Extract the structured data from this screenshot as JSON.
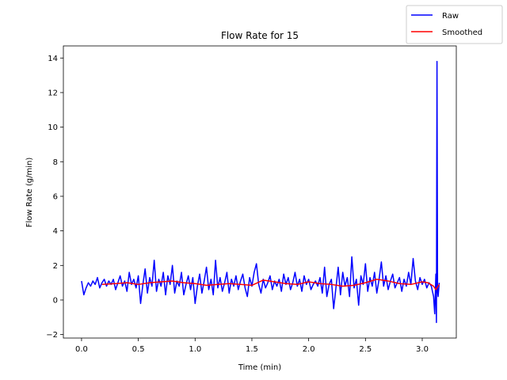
{
  "chart_data": {
    "type": "line",
    "title": "Flow Rate for 15",
    "xlabel": "Time (min)",
    "ylabel": "Flow Rate (g/min)",
    "xlim": [
      -0.16,
      3.3
    ],
    "ylim": [
      -2.2,
      14.7
    ],
    "xticks": [
      0.0,
      0.5,
      1.0,
      1.5,
      2.0,
      2.5,
      3.0
    ],
    "xtick_labels": [
      "0.0",
      "0.5",
      "1.0",
      "1.5",
      "2.0",
      "2.5",
      "3.0"
    ],
    "yticks": [
      -2,
      0,
      2,
      4,
      6,
      8,
      10,
      12,
      14
    ],
    "ytick_labels": [
      "−2",
      "0",
      "2",
      "4",
      "6",
      "8",
      "10",
      "12",
      "14"
    ],
    "legend_position": "top-right",
    "series": [
      {
        "name": "Raw",
        "color": "#0000ff",
        "x": [
          0.0,
          0.02,
          0.04,
          0.06,
          0.08,
          0.1,
          0.12,
          0.14,
          0.16,
          0.18,
          0.2,
          0.22,
          0.24,
          0.26,
          0.28,
          0.3,
          0.32,
          0.34,
          0.36,
          0.38,
          0.4,
          0.42,
          0.44,
          0.46,
          0.48,
          0.5,
          0.52,
          0.54,
          0.56,
          0.58,
          0.6,
          0.62,
          0.64,
          0.66,
          0.68,
          0.7,
          0.72,
          0.74,
          0.76,
          0.78,
          0.8,
          0.82,
          0.84,
          0.86,
          0.88,
          0.9,
          0.92,
          0.94,
          0.96,
          0.98,
          1.0,
          1.02,
          1.04,
          1.06,
          1.08,
          1.1,
          1.12,
          1.14,
          1.16,
          1.18,
          1.2,
          1.22,
          1.24,
          1.26,
          1.28,
          1.3,
          1.32,
          1.34,
          1.36,
          1.38,
          1.4,
          1.42,
          1.44,
          1.46,
          1.48,
          1.5,
          1.52,
          1.54,
          1.56,
          1.58,
          1.6,
          1.62,
          1.64,
          1.66,
          1.68,
          1.7,
          1.72,
          1.74,
          1.76,
          1.78,
          1.8,
          1.82,
          1.84,
          1.86,
          1.88,
          1.9,
          1.92,
          1.94,
          1.96,
          1.98,
          2.0,
          2.02,
          2.04,
          2.06,
          2.08,
          2.1,
          2.12,
          2.14,
          2.16,
          2.18,
          2.2,
          2.22,
          2.24,
          2.26,
          2.28,
          2.3,
          2.32,
          2.34,
          2.36,
          2.38,
          2.4,
          2.42,
          2.44,
          2.46,
          2.48,
          2.5,
          2.52,
          2.54,
          2.56,
          2.58,
          2.6,
          2.62,
          2.64,
          2.66,
          2.68,
          2.7,
          2.72,
          2.74,
          2.76,
          2.78,
          2.8,
          2.82,
          2.84,
          2.86,
          2.88,
          2.9,
          2.92,
          2.94,
          2.96,
          2.98,
          3.0,
          3.02,
          3.04,
          3.06,
          3.08,
          3.1,
          3.11,
          3.12,
          3.125,
          3.13,
          3.135,
          3.14,
          3.15
        ],
        "y": [
          1.1,
          0.3,
          0.7,
          1.0,
          0.8,
          1.1,
          0.9,
          1.3,
          0.7,
          1.0,
          1.2,
          0.8,
          1.1,
          0.9,
          1.2,
          0.6,
          1.0,
          1.4,
          0.8,
          1.1,
          0.5,
          1.6,
          0.9,
          1.2,
          0.7,
          1.4,
          -0.2,
          0.9,
          1.8,
          0.4,
          1.3,
          0.8,
          2.3,
          0.5,
          1.2,
          0.8,
          1.6,
          0.3,
          1.4,
          0.9,
          2.0,
          0.4,
          1.1,
          0.8,
          1.6,
          0.3,
          0.9,
          1.4,
          0.6,
          1.3,
          -0.2,
          0.8,
          1.5,
          0.4,
          1.1,
          1.9,
          0.6,
          1.2,
          0.3,
          2.3,
          0.7,
          1.3,
          0.5,
          1.0,
          1.6,
          0.4,
          1.2,
          0.8,
          1.4,
          0.6,
          1.1,
          1.5,
          0.7,
          0.2,
          1.3,
          0.8,
          1.6,
          2.1,
          0.9,
          0.4,
          1.2,
          0.7,
          1.0,
          1.4,
          0.6,
          1.1,
          0.8,
          1.2,
          0.5,
          1.5,
          0.9,
          1.3,
          0.6,
          1.0,
          1.6,
          0.8,
          1.2,
          0.5,
          1.4,
          0.9,
          1.2,
          0.6,
          0.9,
          1.1,
          0.8,
          1.3,
          0.4,
          1.9,
          0.2,
          0.9,
          1.2,
          -0.5,
          0.7,
          1.9,
          0.3,
          1.6,
          0.8,
          1.3,
          0.2,
          2.5,
          0.7,
          1.2,
          -0.3,
          1.4,
          0.9,
          2.1,
          0.5,
          1.3,
          0.8,
          1.6,
          0.4,
          1.2,
          2.2,
          0.8,
          1.4,
          0.6,
          1.1,
          1.5,
          0.7,
          1.0,
          1.3,
          0.5,
          1.2,
          0.8,
          1.6,
          0.9,
          2.4,
          1.1,
          0.6,
          1.3,
          0.9,
          1.2,
          0.7,
          1.0,
          0.8,
          0.2,
          -0.8,
          1.5,
          -1.3,
          13.8,
          0.5,
          0.2,
          1.0
        ]
      },
      {
        "name": "Smoothed",
        "color": "#ff0000",
        "x": [
          0.18,
          0.3,
          0.4,
          0.5,
          0.6,
          0.7,
          0.8,
          0.9,
          1.0,
          1.1,
          1.2,
          1.3,
          1.4,
          1.5,
          1.6,
          1.7,
          1.8,
          1.9,
          2.0,
          2.1,
          2.2,
          2.3,
          2.4,
          2.5,
          2.6,
          2.7,
          2.8,
          2.9,
          3.0,
          3.05,
          3.1,
          3.12,
          3.15
        ],
        "y": [
          0.9,
          0.95,
          1.0,
          0.9,
          1.0,
          1.05,
          1.1,
          1.0,
          0.95,
          0.85,
          0.9,
          0.95,
          0.9,
          0.85,
          1.15,
          1.05,
          0.95,
          0.9,
          1.05,
          0.95,
          0.9,
          0.8,
          0.85,
          1.0,
          1.2,
          1.1,
          0.95,
          0.9,
          1.05,
          1.0,
          0.8,
          0.6,
          0.9
        ]
      }
    ]
  }
}
